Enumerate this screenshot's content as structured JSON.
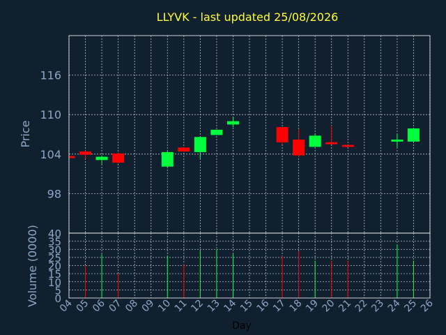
{
  "colors": {
    "background": "#11202f",
    "title": "#ffff33",
    "axis_text": "#8ea7c7",
    "up": "#00ff3c",
    "down": "#ff0000",
    "grid": "#b8c2cc"
  },
  "chart_data": {
    "type": "candlestick",
    "title": "LLYVK - last updated 25/08/2026",
    "ylabel": "Price",
    "volume_label": "Volume (0000)",
    "xlabel": "Day",
    "grid": true,
    "ylim": [
      92,
      122
    ],
    "y_ticks": [
      "98",
      "104",
      "110",
      "116"
    ],
    "volume_ylim": [
      0,
      40
    ],
    "volume_ticks": [
      "0",
      "5",
      "10",
      "15",
      "20",
      "25",
      "30",
      "35",
      "40"
    ],
    "x_ticks": [
      "04",
      "05",
      "06",
      "07",
      "08",
      "09",
      "10",
      "11",
      "12",
      "13",
      "14",
      "15",
      "16",
      "17",
      "18",
      "19",
      "20",
      "21",
      "22",
      "23",
      "24",
      "25",
      "26"
    ],
    "candles": [
      {
        "day": 4,
        "open": 103.7,
        "high": 103.9,
        "low": 103.4,
        "close": 103.4,
        "volume": 0
      },
      {
        "day": 5,
        "open": 104.4,
        "high": 104.5,
        "low": 103.3,
        "close": 103.9,
        "volume": 20
      },
      {
        "day": 6,
        "open": 103.1,
        "high": 103.8,
        "low": 102.5,
        "close": 103.6,
        "volume": 27
      },
      {
        "day": 7,
        "open": 104.1,
        "high": 104.2,
        "low": 102.5,
        "close": 102.7,
        "volume": 15
      },
      {
        "day": 10,
        "open": 102.1,
        "high": 104.4,
        "low": 101.9,
        "close": 104.3,
        "volume": 26
      },
      {
        "day": 11,
        "open": 105.0,
        "high": 105.0,
        "low": 104.3,
        "close": 104.4,
        "volume": 21
      },
      {
        "day": 12,
        "open": 104.3,
        "high": 106.6,
        "low": 103.3,
        "close": 106.6,
        "volume": 29
      },
      {
        "day": 13,
        "open": 106.9,
        "high": 107.7,
        "low": 106.9,
        "close": 107.7,
        "volume": 30
      },
      {
        "day": 14,
        "open": 108.5,
        "high": 109.6,
        "low": 108.1,
        "close": 109.0,
        "volume": 27
      },
      {
        "day": 17,
        "open": 108.1,
        "high": 108.1,
        "low": 105.5,
        "close": 105.8,
        "volume": 26
      },
      {
        "day": 18,
        "open": 106.2,
        "high": 107.8,
        "low": 103.5,
        "close": 103.8,
        "volume": 29
      },
      {
        "day": 19,
        "open": 105.1,
        "high": 107.1,
        "low": 105.1,
        "close": 106.8,
        "volume": 23
      },
      {
        "day": 20,
        "open": 105.8,
        "high": 108.3,
        "low": 105.5,
        "close": 105.5,
        "volume": 23
      },
      {
        "day": 21,
        "open": 105.4,
        "high": 105.4,
        "low": 105.0,
        "close": 105.1,
        "volume": 23
      },
      {
        "day": 24,
        "open": 105.9,
        "high": 107.0,
        "low": 105.0,
        "close": 106.2,
        "volume": 33
      },
      {
        "day": 25,
        "open": 105.9,
        "high": 107.9,
        "low": 105.9,
        "close": 107.9,
        "volume": 23
      }
    ]
  }
}
